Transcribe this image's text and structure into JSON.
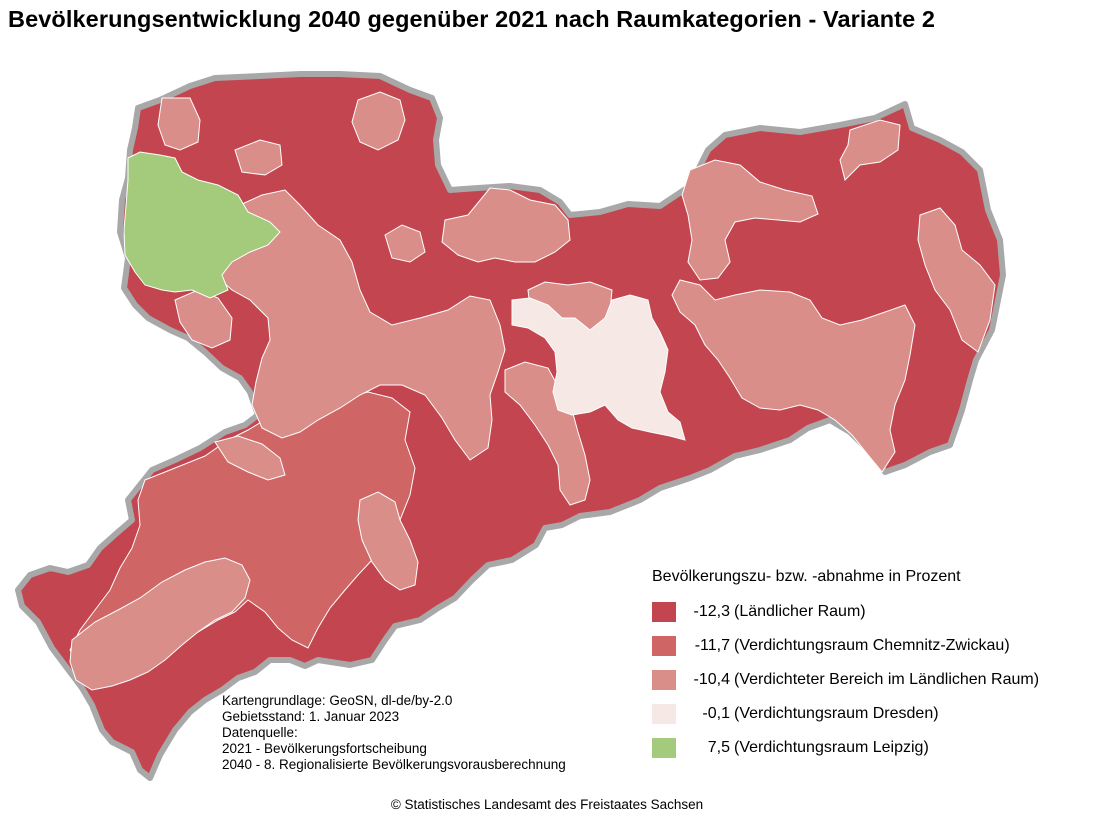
{
  "title": "Bevölkerungsentwicklung 2040 gegenüber 2021 nach Raumkategorien - Variante 2",
  "legend": {
    "title": "Bevölkerungszu- bzw. -abnahme in Prozent",
    "items": [
      {
        "value": "-12,3",
        "label": "(Ländlicher Raum)",
        "color": "#c3454f"
      },
      {
        "value": "-11,7",
        "label": "(Verdichtungsraum Chemnitz-Zwickau)",
        "color": "#cf6565"
      },
      {
        "value": "-10,4",
        "label": "(Verdichteter Bereich im Ländlichen Raum)",
        "color": "#da8e8a"
      },
      {
        "value": "-0,1",
        "label": "(Verdichtungsraum Dresden)",
        "color": "#f6e8e4"
      },
      {
        "value": "7,5",
        "label": "(Verdichtungsraum Leipzig)",
        "color": "#a4cb7c"
      }
    ]
  },
  "source": {
    "lines": [
      "Kartengrundlage: GeoSN, dl-de/by-2.0",
      "Gebietsstand: 1. Januar 2023",
      "Datenquelle:",
      "2021 - Bevölkerungsfortscheibung",
      "2040 - 8. Regionalisierte Bevölkerungsvorausberechnung"
    ]
  },
  "copyright": "© Statistisches Landesamt des Freistaates Sachsen",
  "colors": {
    "border": "#a8a8a8",
    "region_white_border": "#ffffff"
  }
}
